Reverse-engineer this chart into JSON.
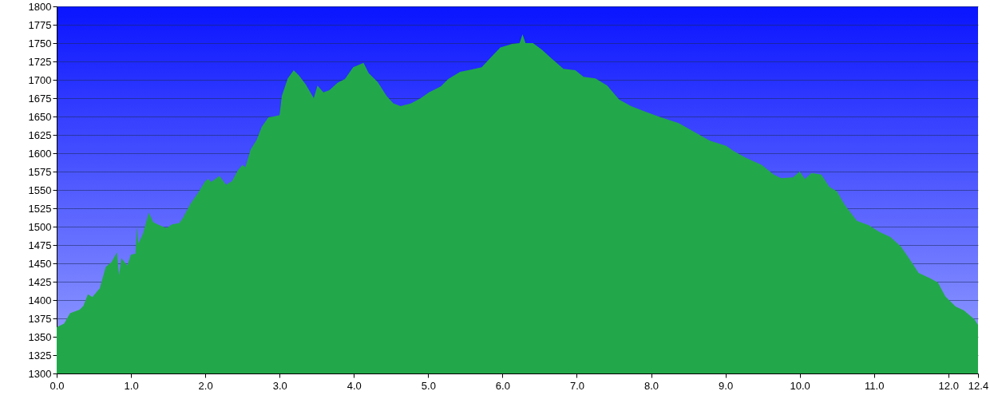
{
  "chart_data": {
    "type": "area",
    "x": [
      0,
      0.1,
      0.18,
      0.31,
      0.36,
      0.42,
      0.48,
      0.58,
      0.66,
      0.74,
      0.81,
      0.84,
      0.87,
      0.95,
      1.0,
      1.06,
      1.08,
      1.1,
      1.16,
      1.24,
      1.3,
      1.36,
      1.43,
      1.48,
      1.55,
      1.65,
      1.7,
      1.8,
      1.91,
      2.0,
      2.04,
      2.08,
      2.19,
      2.28,
      2.36,
      2.44,
      2.5,
      2.54,
      2.61,
      2.69,
      2.76,
      2.85,
      2.92,
      3.0,
      3.03,
      3.11,
      3.19,
      3.26,
      3.35,
      3.46,
      3.51,
      3.59,
      3.67,
      3.78,
      3.88,
      3.99,
      4.13,
      4.2,
      4.32,
      4.44,
      4.53,
      4.63,
      4.77,
      4.9,
      5.01,
      5.17,
      5.27,
      5.43,
      5.59,
      5.72,
      5.81,
      5.97,
      6.13,
      6.23,
      6.27,
      6.31,
      6.41,
      6.53,
      6.66,
      6.82,
      6.98,
      7.09,
      7.25,
      7.41,
      7.57,
      7.73,
      7.91,
      8.1,
      8.37,
      8.58,
      8.79,
      9.01,
      9.11,
      9.27,
      9.49,
      9.65,
      9.75,
      9.91,
      10.0,
      10.07,
      10.16,
      10.29,
      10.4,
      10.5,
      10.61,
      10.77,
      10.93,
      11.07,
      11.22,
      11.36,
      11.49,
      11.6,
      11.75,
      11.86,
      11.96,
      12.1,
      12.21,
      12.35,
      12.4
    ],
    "series": [
      {
        "color": "#22a84a",
        "values": [
          1363,
          1368,
          1382,
          1387,
          1392,
          1408,
          1404,
          1416,
          1445,
          1452,
          1465,
          1434,
          1457,
          1447,
          1462,
          1463,
          1500,
          1477,
          1490,
          1519,
          1506,
          1503,
          1500,
          1498,
          1503,
          1505,
          1512,
          1531,
          1547,
          1562,
          1565,
          1561,
          1569,
          1557,
          1562,
          1577,
          1584,
          1581,
          1605,
          1618,
          1636,
          1649,
          1650,
          1652,
          1678,
          1702,
          1713,
          1706,
          1694,
          1675,
          1692,
          1683,
          1686,
          1696,
          1701,
          1717,
          1723,
          1709,
          1697,
          1678,
          1668,
          1664,
          1668,
          1675,
          1683,
          1691,
          1701,
          1711,
          1714,
          1717,
          1727,
          1744,
          1749,
          1750,
          1762,
          1750,
          1750,
          1741,
          1729,
          1715,
          1713,
          1704,
          1702,
          1692,
          1673,
          1664,
          1657,
          1650,
          1641,
          1629,
          1617,
          1610,
          1603,
          1594,
          1584,
          1571,
          1566,
          1567,
          1575,
          1565,
          1573,
          1571,
          1554,
          1548,
          1529,
          1508,
          1502,
          1493,
          1486,
          1473,
          1454,
          1437,
          1430,
          1424,
          1405,
          1391,
          1386,
          1374,
          1366
        ]
      }
    ],
    "xlim": [
      0,
      12.4
    ],
    "xticks": [
      {
        "value": 0,
        "label": "0.0"
      },
      {
        "value": 1,
        "label": "1.0"
      },
      {
        "value": 2,
        "label": "2.0"
      },
      {
        "value": 3,
        "label": "3.0"
      },
      {
        "value": 4,
        "label": "4.0"
      },
      {
        "value": 5,
        "label": "5.0"
      },
      {
        "value": 6,
        "label": "6.0"
      },
      {
        "value": 7,
        "label": "7.0"
      },
      {
        "value": 8,
        "label": "8.0"
      },
      {
        "value": 9,
        "label": "9.0"
      },
      {
        "value": 10,
        "label": "10.0"
      },
      {
        "value": 11,
        "label": "11.0"
      },
      {
        "value": 12,
        "label": "12.0"
      },
      12.4
    ],
    "ylim": [
      1300,
      1800
    ],
    "yticks": [
      1300,
      1325,
      1350,
      1375,
      1400,
      1425,
      1450,
      1475,
      1500,
      1525,
      1550,
      1575,
      1600,
      1625,
      1650,
      1675,
      1700,
      1725,
      1750,
      1775,
      1800
    ],
    "grid": "y"
  }
}
